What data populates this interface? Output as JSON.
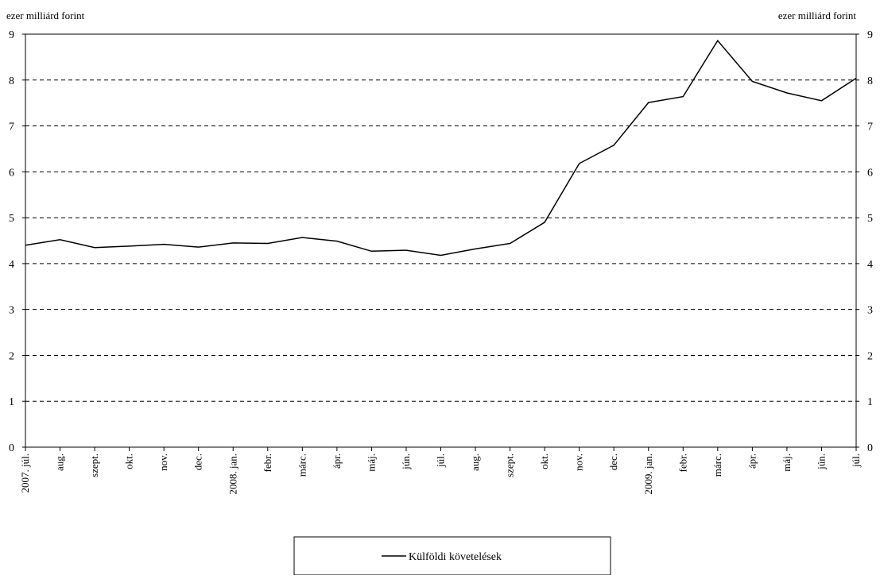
{
  "chart_data": {
    "type": "line",
    "ylabel_left": "ezer milliárd forint",
    "ylabel_right": "ezer milliárd forint",
    "ylim": [
      0,
      9
    ],
    "yticks": [
      0,
      1,
      2,
      3,
      4,
      5,
      6,
      7,
      8,
      9
    ],
    "grid": "horizontal-dashed",
    "legend_placement": "bottom-center",
    "categories": [
      "2007. júl.",
      "aug.",
      "szept.",
      "okt.",
      "nov.",
      "dec.",
      "2008. jan.",
      "febr.",
      "márc.",
      "ápr.",
      "máj.",
      "jún.",
      "júl.",
      "aug.",
      "szept.",
      "okt.",
      "nov.",
      "dec.",
      "2009. jan.",
      "febr.",
      "márc.",
      "ápr.",
      "máj.",
      "jún.",
      "júl."
    ],
    "series": [
      {
        "name": "Külföldi követelések",
        "color": "#000000",
        "values": [
          4.4,
          4.52,
          4.35,
          4.38,
          4.42,
          4.36,
          4.45,
          4.44,
          4.57,
          4.49,
          4.27,
          4.29,
          4.18,
          4.32,
          4.44,
          4.9,
          6.18,
          6.58,
          7.51,
          7.64,
          8.86,
          7.97,
          7.72,
          7.55,
          8.04
        ]
      }
    ]
  }
}
